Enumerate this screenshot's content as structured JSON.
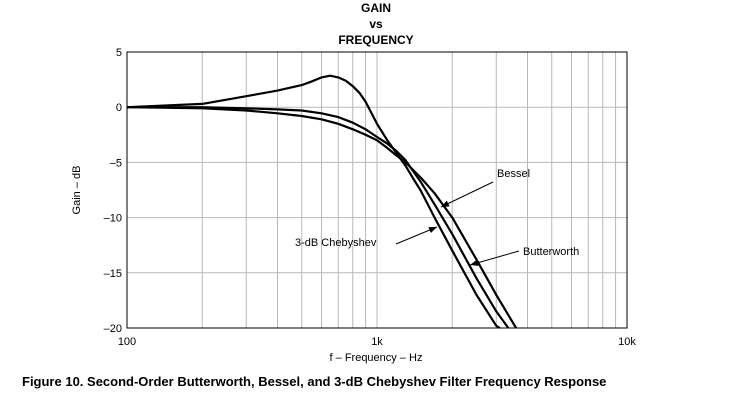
{
  "chart_data": {
    "type": "line",
    "title_lines": [
      "GAIN",
      "vs",
      "FREQUENCY"
    ],
    "xlabel": "f – Frequency – Hz",
    "ylabel": "Gain – dB",
    "x_scale": "log",
    "xlim": [
      100,
      10000
    ],
    "ylim": [
      -20,
      5
    ],
    "x_ticks": [
      100,
      1000,
      10000
    ],
    "x_tick_labels": [
      "100",
      "1k",
      "10k"
    ],
    "y_ticks": [
      5,
      0,
      -5,
      -10,
      -15,
      -20
    ],
    "y_tick_labels": [
      "5",
      "0",
      "–5",
      "–10",
      "–15",
      "–20"
    ],
    "grid": true,
    "series": [
      {
        "name": "3-dB Chebyshev",
        "x": [
          100,
          200,
          300,
          400,
          500,
          550,
          600,
          650,
          700,
          750,
          800,
          850,
          900,
          1000,
          1100,
          1200,
          1300,
          1400,
          1500,
          1700,
          2000,
          2500,
          3000,
          3100
        ],
        "y": [
          0,
          0.3,
          1.0,
          1.5,
          2.0,
          2.35,
          2.7,
          2.85,
          2.7,
          2.4,
          1.9,
          1.3,
          0.5,
          -1.5,
          -3.0,
          -4.2,
          -5.3,
          -6.5,
          -7.6,
          -10.0,
          -13.0,
          -17.0,
          -19.8,
          -20
        ]
      },
      {
        "name": "Butterworth",
        "x": [
          100,
          200,
          300,
          400,
          500,
          600,
          700,
          800,
          900,
          1000,
          1100,
          1200,
          1300,
          1500,
          1700,
          2000,
          2500,
          3000,
          3350
        ],
        "y": [
          0,
          0,
          -0.1,
          -0.2,
          -0.3,
          -0.55,
          -0.9,
          -1.4,
          -2.0,
          -2.7,
          -3.3,
          -4.0,
          -4.8,
          -6.8,
          -8.8,
          -11.5,
          -15.5,
          -18.5,
          -20
        ]
      },
      {
        "name": "Bessel",
        "x": [
          100,
          200,
          300,
          400,
          500,
          600,
          700,
          800,
          900,
          1000,
          1100,
          1200,
          1300,
          1500,
          1700,
          2000,
          2500,
          3000,
          3600
        ],
        "y": [
          0,
          -0.1,
          -0.3,
          -0.55,
          -0.8,
          -1.1,
          -1.5,
          -2.0,
          -2.5,
          -3.0,
          -3.7,
          -4.4,
          -5.0,
          -6.4,
          -7.8,
          -10.0,
          -13.8,
          -17.0,
          -20
        ]
      }
    ],
    "annotations": [
      {
        "text": "Bessel",
        "series": "Bessel"
      },
      {
        "text": "Butterworth",
        "series": "Butterworth"
      },
      {
        "text": "3-dB Chebyshev",
        "series": "3-dB Chebyshev"
      }
    ]
  },
  "caption": "Figure 10.  Second-Order Butterworth, Bessel, and 3-dB Chebyshev Filter Frequency Response"
}
